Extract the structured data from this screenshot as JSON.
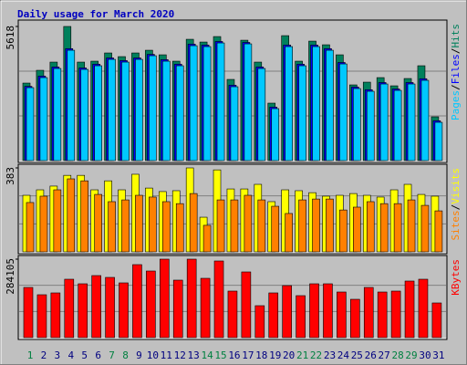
{
  "chart_data": [
    {
      "type": "bar",
      "title": "Daily usage for March 2020",
      "legend_separator": "/",
      "ylim": [
        0,
        5618
      ],
      "yticks": [
        5618
      ],
      "series": [
        {
          "name": "Hits",
          "color": "#00805c",
          "values": [
            3247,
            3782,
            4126,
            5618,
            4126,
            4164,
            4508,
            4355,
            4508,
            4622,
            4431,
            4164,
            5081,
            4966,
            5195,
            3400,
            5042,
            4126,
            2407,
            5233,
            4164,
            5004,
            4851,
            4431,
            3171,
            3285,
            3476,
            3132,
            3438,
            3973,
            1834
          ]
        },
        {
          "name": "Files",
          "color": "#0000ff",
          "values": [
            3110,
            3540,
            3920,
            4690,
            3880,
            4040,
            4300,
            4190,
            4300,
            4450,
            4230,
            4040,
            4880,
            4840,
            4990,
            3160,
            4950,
            3920,
            2240,
            4840,
            4040,
            4840,
            4690,
            4110,
            3080,
            2970,
            3270,
            3000,
            3270,
            3430,
            1670
          ]
        },
        {
          "name": "Pages",
          "color": "#00c8ff",
          "values": [
            3056,
            3476,
            3858,
            4622,
            3820,
            3973,
            4240,
            4126,
            4240,
            4393,
            4164,
            3973,
            4813,
            4775,
            4928,
            3094,
            4890,
            3858,
            2177,
            4775,
            3973,
            4775,
            4622,
            4049,
            3018,
            2903,
            3209,
            2941,
            3209,
            3362,
            1604
          ]
        }
      ]
    },
    {
      "type": "bar",
      "legend_separator": "/",
      "ylim": [
        0,
        383
      ],
      "yticks": [
        383
      ],
      "series": [
        {
          "name": "Visits",
          "color": "#ffff00",
          "values": [
            258,
            283,
            300,
            349,
            349,
            283,
            324,
            283,
            354,
            291,
            275,
            279,
            383,
            158,
            374,
            287,
            287,
            308,
            229,
            283,
            279,
            270,
            254,
            258,
            266,
            258,
            250,
            283,
            308,
            262,
            254
          ]
        },
        {
          "name": "Sites",
          "color": "#ff8000",
          "values": [
            225,
            254,
            283,
            333,
            324,
            262,
            229,
            237,
            258,
            250,
            229,
            220,
            266,
            121,
            237,
            237,
            258,
            237,
            208,
            175,
            237,
            241,
            241,
            191,
            204,
            229,
            220,
            220,
            237,
            212,
            187
          ]
        }
      ]
    },
    {
      "type": "bar",
      "ylim": [
        0,
        284105
      ],
      "yticks": [
        284105
      ],
      "categories": [
        "1",
        "2",
        "3",
        "4",
        "5",
        "6",
        "7",
        "8",
        "9",
        "10",
        "11",
        "12",
        "13",
        "14",
        "15",
        "16",
        "17",
        "18",
        "19",
        "20",
        "21",
        "22",
        "23",
        "24",
        "25",
        "26",
        "27",
        "28",
        "29",
        "30",
        "31"
      ],
      "category_colors": [
        "#008040",
        "#000080",
        "#000080",
        "#000080",
        "#000080",
        "#000080",
        "#008040",
        "#008040",
        "#000080",
        "#000080",
        "#000080",
        "#000080",
        "#000080",
        "#008040",
        "#008040",
        "#000080",
        "#000080",
        "#000080",
        "#000080",
        "#000080",
        "#008040",
        "#008040",
        "#000080",
        "#000080",
        "#000080",
        "#000080",
        "#000080",
        "#008040",
        "#008040",
        "#000080",
        "#000080"
      ],
      "series": [
        {
          "name": "KBytes",
          "color": "#ff0000",
          "values": [
            181693,
            155265,
            161872,
            211424,
            194907,
            224638,
            218031,
            198210,
            264280,
            241156,
            284105,
            208121,
            284105,
            214728,
            277494,
            168479,
            237852,
            115623,
            161872,
            188300,
            151961,
            194907,
            194907,
            165175,
            138747,
            181693,
            165175,
            168479,
            204817,
            211424,
            125533
          ]
        }
      ]
    }
  ]
}
